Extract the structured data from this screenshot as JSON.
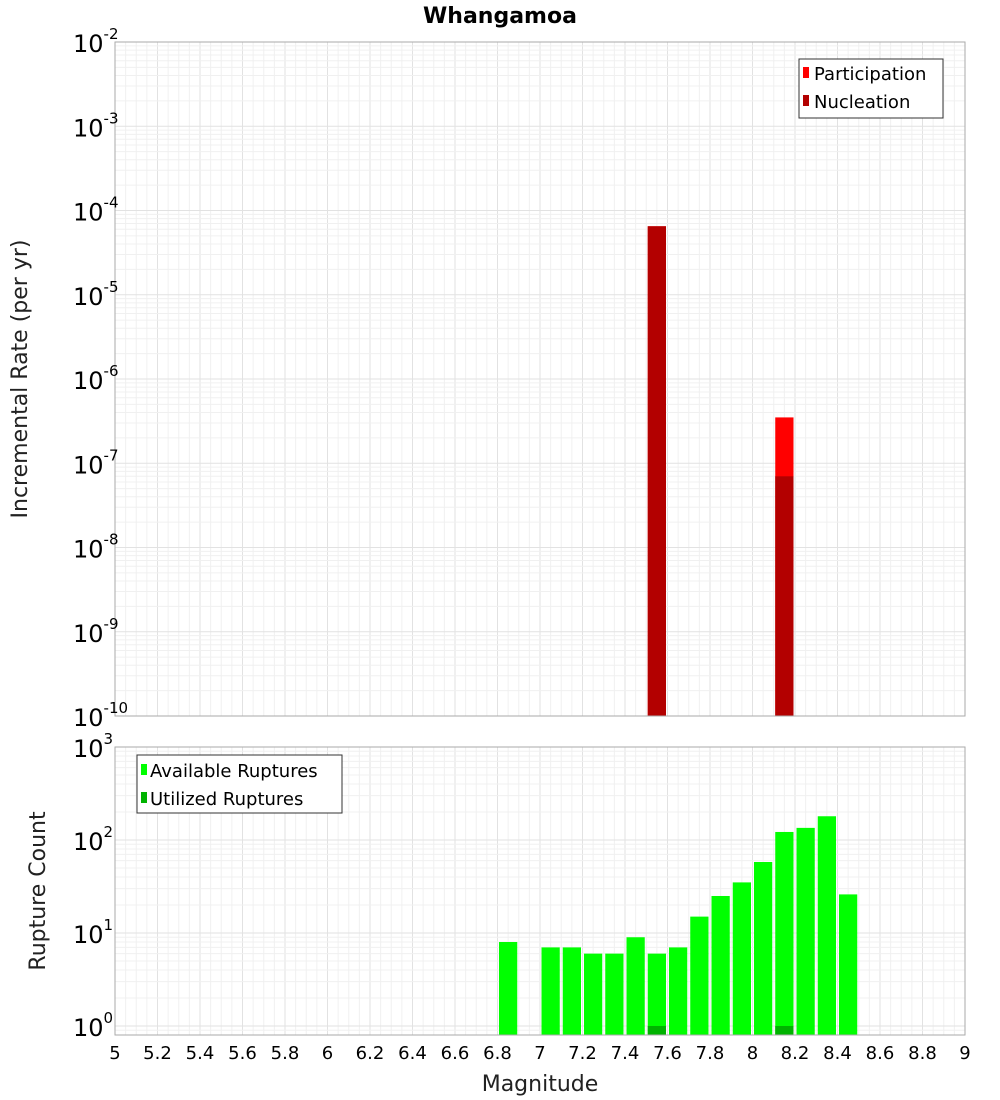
{
  "chart_data": [
    {
      "type": "bar",
      "title": "Whangamoa",
      "ylabel": "Incremental Rate (per yr)",
      "yscale": "log",
      "ylim": [
        1e-10,
        0.01
      ],
      "y_tick_exponents": [
        -10,
        -9,
        -8,
        -7,
        -6,
        -5,
        -4,
        -3,
        -2
      ],
      "xlim": [
        5,
        9
      ],
      "bin_width": 0.1,
      "grid": true,
      "legend_position": "top-right",
      "series": [
        {
          "name": "Participation",
          "color": "#ff0000",
          "x": [
            7.55,
            8.15
          ],
          "values": [
            6.5e-05,
            3.5e-07
          ]
        },
        {
          "name": "Nucleation",
          "color": "#b30000",
          "x": [
            7.55,
            8.15
          ],
          "values": [
            6.5e-05,
            7e-08
          ]
        }
      ]
    },
    {
      "type": "bar",
      "xlabel": "Magnitude",
      "ylabel": "Rupture Count",
      "yscale": "log",
      "ylim": [
        0.8,
        1000
      ],
      "y_tick_exponents": [
        0,
        1,
        2,
        3
      ],
      "xlim": [
        5,
        9
      ],
      "x_ticks": [
        "5",
        "5.2",
        "5.4",
        "5.6",
        "5.8",
        "6",
        "6.2",
        "6.4",
        "6.6",
        "6.8",
        "7",
        "7.2",
        "7.4",
        "7.6",
        "7.8",
        "8",
        "8.2",
        "8.4",
        "8.6",
        "8.8",
        "9"
      ],
      "bin_width": 0.1,
      "grid": true,
      "legend_position": "top-left",
      "series": [
        {
          "name": "Available Ruptures",
          "color": "#00ff00",
          "x": [
            6.85,
            7.05,
            7.15,
            7.25,
            7.35,
            7.45,
            7.55,
            7.65,
            7.75,
            7.85,
            7.95,
            8.05,
            8.15,
            8.25,
            8.35,
            8.45
          ],
          "values": [
            8,
            7,
            7,
            6,
            6,
            9,
            6,
            7,
            15,
            25,
            35,
            58,
            122,
            135,
            180,
            26
          ]
        },
        {
          "name": "Utilized Ruptures",
          "color": "#00b300",
          "x": [
            7.55,
            8.15
          ],
          "values": [
            1,
            1
          ]
        }
      ]
    }
  ]
}
